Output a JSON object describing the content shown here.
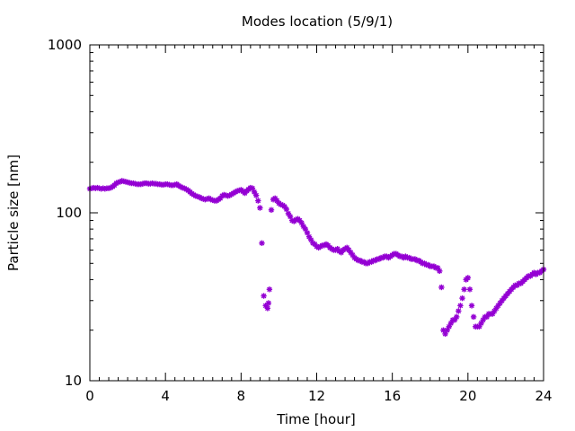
{
  "chart_data": {
    "type": "scatter",
    "title": "Modes location (5/9/1)",
    "xlabel": "Time [hour]",
    "ylabel": "Particle size [nm]",
    "xlim": [
      0,
      24
    ],
    "ylim": [
      10,
      1000
    ],
    "y_scale": "log",
    "x_ticks": [
      0,
      4,
      8,
      12,
      16,
      20,
      24
    ],
    "x_tick_labels": [
      "0",
      "4",
      "8",
      "12",
      "16",
      "20",
      "24"
    ],
    "y_ticks": [
      10,
      100,
      1000
    ],
    "y_tick_labels": [
      "10",
      "100",
      "1000"
    ],
    "grid": false,
    "legend": "none",
    "marker_color": "#9400d3",
    "series": [
      {
        "points": [
          [
            0.0,
            139
          ],
          [
            0.1,
            140
          ],
          [
            0.2,
            141
          ],
          [
            0.3,
            140
          ],
          [
            0.4,
            141
          ],
          [
            0.5,
            140
          ],
          [
            0.6,
            139
          ],
          [
            0.7,
            140
          ],
          [
            0.8,
            139
          ],
          [
            0.9,
            140
          ],
          [
            1.0,
            140
          ],
          [
            1.1,
            141
          ],
          [
            1.2,
            143
          ],
          [
            1.3,
            146
          ],
          [
            1.4,
            150
          ],
          [
            1.5,
            152
          ],
          [
            1.6,
            153
          ],
          [
            1.7,
            155
          ],
          [
            1.8,
            154
          ],
          [
            1.9,
            153
          ],
          [
            2.0,
            152
          ],
          [
            2.1,
            151
          ],
          [
            2.2,
            150
          ],
          [
            2.3,
            150
          ],
          [
            2.4,
            149
          ],
          [
            2.5,
            148
          ],
          [
            2.6,
            148
          ],
          [
            2.7,
            148
          ],
          [
            2.8,
            149
          ],
          [
            2.9,
            150
          ],
          [
            3.0,
            150
          ],
          [
            3.1,
            149
          ],
          [
            3.2,
            149
          ],
          [
            3.3,
            150
          ],
          [
            3.4,
            149
          ],
          [
            3.5,
            149
          ],
          [
            3.6,
            148
          ],
          [
            3.7,
            148
          ],
          [
            3.8,
            147
          ],
          [
            3.9,
            147
          ],
          [
            4.0,
            148
          ],
          [
            4.1,
            148
          ],
          [
            4.2,
            147
          ],
          [
            4.3,
            146
          ],
          [
            4.4,
            146
          ],
          [
            4.5,
            147
          ],
          [
            4.6,
            148
          ],
          [
            4.7,
            145
          ],
          [
            4.8,
            143
          ],
          [
            4.9,
            141
          ],
          [
            5.0,
            140
          ],
          [
            5.1,
            138
          ],
          [
            5.2,
            136
          ],
          [
            5.3,
            133
          ],
          [
            5.4,
            130
          ],
          [
            5.5,
            128
          ],
          [
            5.6,
            126
          ],
          [
            5.7,
            125
          ],
          [
            5.8,
            124
          ],
          [
            5.9,
            122
          ],
          [
            6.0,
            121
          ],
          [
            6.1,
            120
          ],
          [
            6.2,
            121
          ],
          [
            6.3,
            122
          ],
          [
            6.4,
            120
          ],
          [
            6.5,
            119
          ],
          [
            6.6,
            118
          ],
          [
            6.7,
            118
          ],
          [
            6.8,
            120
          ],
          [
            6.9,
            122
          ],
          [
            7.0,
            126
          ],
          [
            7.1,
            128
          ],
          [
            7.2,
            127
          ],
          [
            7.3,
            126
          ],
          [
            7.4,
            127
          ],
          [
            7.5,
            129
          ],
          [
            7.6,
            131
          ],
          [
            7.7,
            133
          ],
          [
            7.8,
            135
          ],
          [
            7.9,
            136
          ],
          [
            8.0,
            137
          ],
          [
            8.1,
            134
          ],
          [
            8.2,
            131
          ],
          [
            8.3,
            135
          ],
          [
            8.4,
            138
          ],
          [
            8.5,
            141
          ],
          [
            8.6,
            140
          ],
          [
            8.7,
            133
          ],
          [
            8.8,
            127
          ],
          [
            8.9,
            118
          ],
          [
            9.0,
            107
          ],
          [
            9.1,
            66
          ],
          [
            9.2,
            32
          ],
          [
            9.3,
            28
          ],
          [
            9.4,
            27
          ],
          [
            9.45,
            29
          ],
          [
            9.5,
            35
          ],
          [
            9.6,
            104
          ],
          [
            9.7,
            120
          ],
          [
            9.8,
            122
          ],
          [
            9.9,
            118
          ],
          [
            10.0,
            114
          ],
          [
            10.1,
            112
          ],
          [
            10.2,
            111
          ],
          [
            10.3,
            109
          ],
          [
            10.4,
            105
          ],
          [
            10.5,
            99
          ],
          [
            10.6,
            95
          ],
          [
            10.7,
            90
          ],
          [
            10.8,
            89
          ],
          [
            10.9,
            91
          ],
          [
            11.0,
            92
          ],
          [
            11.1,
            90
          ],
          [
            11.2,
            87
          ],
          [
            11.3,
            83
          ],
          [
            11.4,
            80
          ],
          [
            11.5,
            76
          ],
          [
            11.6,
            72
          ],
          [
            11.7,
            69
          ],
          [
            11.8,
            66
          ],
          [
            11.9,
            65
          ],
          [
            12.0,
            63
          ],
          [
            12.1,
            62
          ],
          [
            12.2,
            63
          ],
          [
            12.3,
            64
          ],
          [
            12.4,
            64
          ],
          [
            12.5,
            65
          ],
          [
            12.6,
            64
          ],
          [
            12.7,
            62
          ],
          [
            12.8,
            61
          ],
          [
            12.9,
            60
          ],
          [
            13.0,
            60
          ],
          [
            13.1,
            61
          ],
          [
            13.2,
            59
          ],
          [
            13.3,
            58
          ],
          [
            13.4,
            60
          ],
          [
            13.5,
            61
          ],
          [
            13.6,
            62
          ],
          [
            13.7,
            60
          ],
          [
            13.8,
            58
          ],
          [
            13.9,
            56
          ],
          [
            14.0,
            54
          ],
          [
            14.1,
            53
          ],
          [
            14.2,
            52
          ],
          [
            14.3,
            52
          ],
          [
            14.4,
            51
          ],
          [
            14.5,
            51
          ],
          [
            14.6,
            50
          ],
          [
            14.7,
            50
          ],
          [
            14.8,
            51
          ],
          [
            14.9,
            51
          ],
          [
            15.0,
            52
          ],
          [
            15.1,
            52
          ],
          [
            15.2,
            53
          ],
          [
            15.3,
            53
          ],
          [
            15.4,
            54
          ],
          [
            15.5,
            54
          ],
          [
            15.6,
            55
          ],
          [
            15.7,
            55
          ],
          [
            15.8,
            54
          ],
          [
            15.9,
            55
          ],
          [
            16.0,
            56
          ],
          [
            16.1,
            57
          ],
          [
            16.2,
            57
          ],
          [
            16.3,
            56
          ],
          [
            16.4,
            55
          ],
          [
            16.5,
            55
          ],
          [
            16.6,
            54
          ],
          [
            16.7,
            55
          ],
          [
            16.8,
            54
          ],
          [
            16.9,
            54
          ],
          [
            17.0,
            53
          ],
          [
            17.1,
            53
          ],
          [
            17.2,
            53
          ],
          [
            17.3,
            52
          ],
          [
            17.4,
            52
          ],
          [
            17.5,
            51
          ],
          [
            17.6,
            50
          ],
          [
            17.7,
            50
          ],
          [
            17.8,
            49
          ],
          [
            17.9,
            49
          ],
          [
            18.0,
            48
          ],
          [
            18.1,
            48
          ],
          [
            18.2,
            48
          ],
          [
            18.3,
            47
          ],
          [
            18.4,
            47
          ],
          [
            18.5,
            45
          ],
          [
            18.6,
            36
          ],
          [
            18.7,
            20
          ],
          [
            18.8,
            19
          ],
          [
            18.9,
            20
          ],
          [
            19.0,
            21
          ],
          [
            19.1,
            22
          ],
          [
            19.2,
            23
          ],
          [
            19.3,
            23
          ],
          [
            19.4,
            24
          ],
          [
            19.5,
            26
          ],
          [
            19.6,
            28
          ],
          [
            19.7,
            31
          ],
          [
            19.8,
            35
          ],
          [
            19.9,
            40
          ],
          [
            20.0,
            41
          ],
          [
            20.1,
            35
          ],
          [
            20.2,
            28
          ],
          [
            20.3,
            24
          ],
          [
            20.4,
            21
          ],
          [
            20.5,
            21
          ],
          [
            20.6,
            21
          ],
          [
            20.7,
            22
          ],
          [
            20.8,
            23
          ],
          [
            20.9,
            24
          ],
          [
            21.0,
            24
          ],
          [
            21.1,
            25
          ],
          [
            21.2,
            25
          ],
          [
            21.3,
            25
          ],
          [
            21.4,
            26
          ],
          [
            21.5,
            27
          ],
          [
            21.6,
            28
          ],
          [
            21.7,
            29
          ],
          [
            21.8,
            30
          ],
          [
            21.9,
            31
          ],
          [
            22.0,
            32
          ],
          [
            22.1,
            33
          ],
          [
            22.2,
            34
          ],
          [
            22.3,
            35
          ],
          [
            22.4,
            36
          ],
          [
            22.5,
            37
          ],
          [
            22.6,
            37
          ],
          [
            22.7,
            38
          ],
          [
            22.8,
            38
          ],
          [
            22.9,
            39
          ],
          [
            23.0,
            40
          ],
          [
            23.1,
            41
          ],
          [
            23.2,
            42
          ],
          [
            23.3,
            42
          ],
          [
            23.4,
            43
          ],
          [
            23.5,
            44
          ],
          [
            23.6,
            43
          ],
          [
            23.7,
            44
          ],
          [
            23.8,
            44
          ],
          [
            23.9,
            45
          ],
          [
            24.0,
            46
          ]
        ]
      }
    ]
  }
}
